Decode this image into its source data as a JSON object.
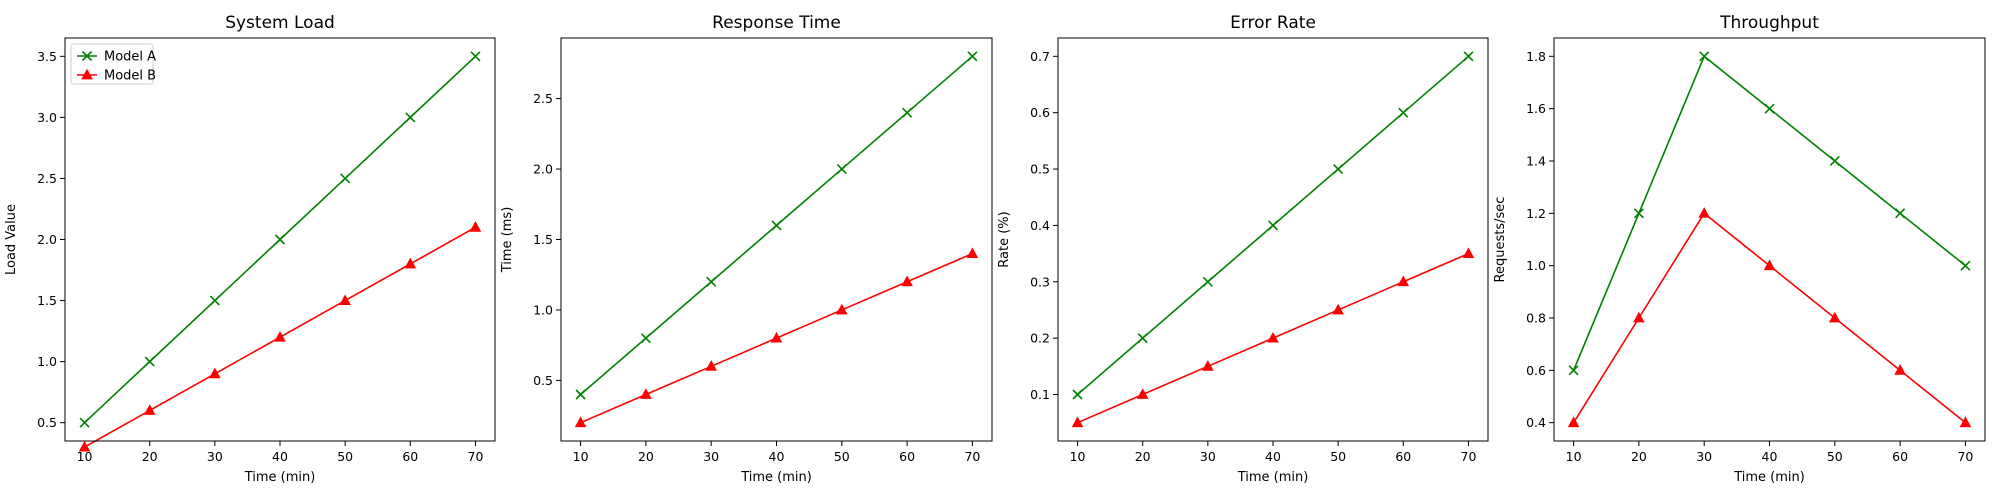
{
  "figure": {
    "background": "#ffffff"
  },
  "chart_data": [
    {
      "type": "line",
      "title": "System Load",
      "xlabel": "Time (min)",
      "ylabel": "Load Value",
      "x": [
        10,
        20,
        30,
        40,
        50,
        60,
        70
      ],
      "xlim": [
        7,
        73
      ],
      "ylim": [
        0.35,
        3.65
      ],
      "xticks": [
        10,
        20,
        30,
        40,
        50,
        60,
        70
      ],
      "yticks": [
        0.5,
        1.0,
        1.5,
        2.0,
        2.5,
        3.0,
        3.5
      ],
      "ytick_decimals": 1,
      "grid": false,
      "legend": "upper-left",
      "series": [
        {
          "name": "Model A",
          "color": "#008000",
          "marker": "x",
          "values": [
            0.5,
            1.0,
            1.5,
            2.0,
            2.5,
            3.0,
            3.5
          ]
        },
        {
          "name": "Model B",
          "color": "#ff0000",
          "marker": "triangle",
          "values": [
            0.3,
            0.6,
            0.9,
            1.2,
            1.5,
            1.8,
            2.1
          ]
        }
      ]
    },
    {
      "type": "line",
      "title": "Response Time",
      "xlabel": "Time (min)",
      "ylabel": "Time (ms)",
      "x": [
        10,
        20,
        30,
        40,
        50,
        60,
        70
      ],
      "xlim": [
        7,
        73
      ],
      "ylim": [
        0.07,
        2.93
      ],
      "xticks": [
        10,
        20,
        30,
        40,
        50,
        60,
        70
      ],
      "yticks": [
        0.5,
        1.0,
        1.5,
        2.0,
        2.5
      ],
      "ytick_decimals": 1,
      "grid": false,
      "legend": "none",
      "series": [
        {
          "name": "Model A",
          "color": "#008000",
          "marker": "x",
          "values": [
            0.4,
            0.8,
            1.2,
            1.6,
            2.0,
            2.4,
            2.8
          ]
        },
        {
          "name": "Model B",
          "color": "#ff0000",
          "marker": "triangle",
          "values": [
            0.2,
            0.4,
            0.6,
            0.8,
            1.0,
            1.2,
            1.4
          ]
        }
      ]
    },
    {
      "type": "line",
      "title": "Error Rate",
      "xlabel": "Time (min)",
      "ylabel": "Rate (%)",
      "x": [
        10,
        20,
        30,
        40,
        50,
        60,
        70
      ],
      "xlim": [
        7,
        73
      ],
      "ylim": [
        0.0175,
        0.7325
      ],
      "xticks": [
        10,
        20,
        30,
        40,
        50,
        60,
        70
      ],
      "yticks": [
        0.1,
        0.2,
        0.3,
        0.4,
        0.5,
        0.6,
        0.7
      ],
      "ytick_decimals": 1,
      "grid": false,
      "legend": "none",
      "series": [
        {
          "name": "Model A",
          "color": "#008000",
          "marker": "x",
          "values": [
            0.1,
            0.2,
            0.3,
            0.4,
            0.5,
            0.6,
            0.7
          ]
        },
        {
          "name": "Model B",
          "color": "#ff0000",
          "marker": "triangle",
          "values": [
            0.05,
            0.1,
            0.15,
            0.2,
            0.25,
            0.3,
            0.35
          ]
        }
      ]
    },
    {
      "type": "line",
      "title": "Throughput",
      "xlabel": "Time (min)",
      "ylabel": "Requests/sec",
      "x": [
        10,
        20,
        30,
        40,
        50,
        60,
        70
      ],
      "xlim": [
        7,
        73
      ],
      "ylim": [
        0.33,
        1.87
      ],
      "xticks": [
        10,
        20,
        30,
        40,
        50,
        60,
        70
      ],
      "yticks": [
        0.4,
        0.6,
        0.8,
        1.0,
        1.2,
        1.4,
        1.6,
        1.8
      ],
      "ytick_decimals": 1,
      "grid": false,
      "legend": "none",
      "series": [
        {
          "name": "Model A",
          "color": "#008000",
          "marker": "x",
          "values": [
            0.6,
            1.2,
            1.8,
            1.6,
            1.4,
            1.2,
            1.0
          ]
        },
        {
          "name": "Model B",
          "color": "#ff0000",
          "marker": "triangle",
          "values": [
            0.4,
            0.8,
            1.2,
            1.0,
            0.8,
            0.6,
            0.4
          ]
        }
      ]
    }
  ]
}
